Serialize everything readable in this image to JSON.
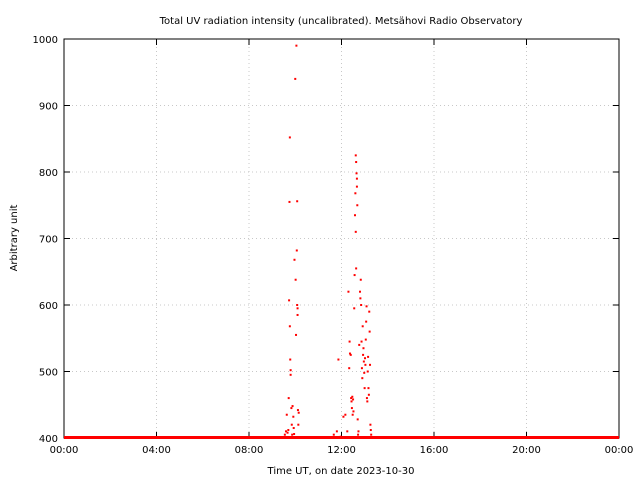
{
  "chart_data": {
    "type": "scatter",
    "title": "Total UV radiation intensity (uncalibrated). Metsähovi Radio Observatory",
    "xlabel": "Time UT, on date 2023-10-30",
    "ylabel": "Arbitrary unit",
    "xlim": [
      "00:00",
      "24:00"
    ],
    "ylim": [
      400,
      1000
    ],
    "x_ticks": [
      "00:00",
      "04:00",
      "08:00",
      "12:00",
      "16:00",
      "20:00",
      "00:00"
    ],
    "y_ticks": [
      "400",
      "500",
      "600",
      "700",
      "800",
      "900",
      "1000"
    ],
    "grid": true,
    "marker_color": "#ff0000",
    "series": [
      {
        "baseline": {
          "value": 400,
          "x_start": "00:00",
          "x_end": "24:00"
        },
        "points": [
          {
            "x": "09:33",
            "y": 405
          },
          {
            "x": "09:36",
            "y": 410
          },
          {
            "x": "09:38",
            "y": 435
          },
          {
            "x": "09:40",
            "y": 408
          },
          {
            "x": "09:42",
            "y": 412
          },
          {
            "x": "09:43",
            "y": 460
          },
          {
            "x": "09:44",
            "y": 607
          },
          {
            "x": "09:45",
            "y": 755
          },
          {
            "x": "09:46",
            "y": 852
          },
          {
            "x": "09:46",
            "y": 568
          },
          {
            "x": "09:47",
            "y": 518
          },
          {
            "x": "09:48",
            "y": 502
          },
          {
            "x": "09:48",
            "y": 495
          },
          {
            "x": "09:50",
            "y": 445
          },
          {
            "x": "09:51",
            "y": 420
          },
          {
            "x": "09:52",
            "y": 405
          },
          {
            "x": "09:53",
            "y": 448
          },
          {
            "x": "09:55",
            "y": 432
          },
          {
            "x": "09:56",
            "y": 415
          },
          {
            "x": "09:57",
            "y": 406
          },
          {
            "x": "09:58",
            "y": 668
          },
          {
            "x": "10:00",
            "y": 940
          },
          {
            "x": "10:01",
            "y": 638
          },
          {
            "x": "10:02",
            "y": 555
          },
          {
            "x": "10:03",
            "y": 990
          },
          {
            "x": "10:04",
            "y": 682
          },
          {
            "x": "10:05",
            "y": 756
          },
          {
            "x": "10:05",
            "y": 600
          },
          {
            "x": "10:06",
            "y": 585
          },
          {
            "x": "10:06",
            "y": 595
          },
          {
            "x": "10:07",
            "y": 442
          },
          {
            "x": "10:08",
            "y": 420
          },
          {
            "x": "10:09",
            "y": 438
          },
          {
            "x": "11:40",
            "y": 405
          },
          {
            "x": "11:48",
            "y": 410
          },
          {
            "x": "11:52",
            "y": 518
          },
          {
            "x": "11:58",
            "y": 402
          },
          {
            "x": "12:05",
            "y": 432
          },
          {
            "x": "12:10",
            "y": 435
          },
          {
            "x": "12:15",
            "y": 410
          },
          {
            "x": "12:18",
            "y": 620
          },
          {
            "x": "12:20",
            "y": 505
          },
          {
            "x": "12:21",
            "y": 545
          },
          {
            "x": "12:22",
            "y": 527
          },
          {
            "x": "12:24",
            "y": 525
          },
          {
            "x": "12:25",
            "y": 460
          },
          {
            "x": "12:26",
            "y": 455
          },
          {
            "x": "12:27",
            "y": 445
          },
          {
            "x": "12:28",
            "y": 462
          },
          {
            "x": "12:29",
            "y": 435
          },
          {
            "x": "12:30",
            "y": 458
          },
          {
            "x": "12:31",
            "y": 440
          },
          {
            "x": "12:33",
            "y": 595
          },
          {
            "x": "12:34",
            "y": 645
          },
          {
            "x": "12:35",
            "y": 735
          },
          {
            "x": "12:36",
            "y": 768
          },
          {
            "x": "12:37",
            "y": 825
          },
          {
            "x": "12:37",
            "y": 710
          },
          {
            "x": "12:38",
            "y": 815
          },
          {
            "x": "12:38",
            "y": 655
          },
          {
            "x": "12:39",
            "y": 798
          },
          {
            "x": "12:40",
            "y": 790
          },
          {
            "x": "12:40",
            "y": 778
          },
          {
            "x": "12:41",
            "y": 750
          },
          {
            "x": "12:42",
            "y": 428
          },
          {
            "x": "12:43",
            "y": 405
          },
          {
            "x": "12:44",
            "y": 410
          },
          {
            "x": "12:46",
            "y": 540
          },
          {
            "x": "12:48",
            "y": 620
          },
          {
            "x": "12:49",
            "y": 610
          },
          {
            "x": "12:50",
            "y": 638
          },
          {
            "x": "12:51",
            "y": 600
          },
          {
            "x": "12:52",
            "y": 545
          },
          {
            "x": "12:53",
            "y": 505
          },
          {
            "x": "12:54",
            "y": 490
          },
          {
            "x": "12:55",
            "y": 568
          },
          {
            "x": "12:56",
            "y": 525
          },
          {
            "x": "12:57",
            "y": 535
          },
          {
            "x": "12:58",
            "y": 515
          },
          {
            "x": "12:59",
            "y": 498
          },
          {
            "x": "13:00",
            "y": 475
          },
          {
            "x": "13:01",
            "y": 520
          },
          {
            "x": "13:02",
            "y": 510
          },
          {
            "x": "13:03",
            "y": 548
          },
          {
            "x": "13:04",
            "y": 575
          },
          {
            "x": "13:05",
            "y": 598
          },
          {
            "x": "13:06",
            "y": 460
          },
          {
            "x": "13:07",
            "y": 455
          },
          {
            "x": "13:08",
            "y": 500
          },
          {
            "x": "13:09",
            "y": 522
          },
          {
            "x": "13:10",
            "y": 475
          },
          {
            "x": "13:11",
            "y": 465
          },
          {
            "x": "13:12",
            "y": 590
          },
          {
            "x": "13:13",
            "y": 560
          },
          {
            "x": "13:14",
            "y": 510
          },
          {
            "x": "13:15",
            "y": 420
          },
          {
            "x": "13:16",
            "y": 412
          },
          {
            "x": "13:17",
            "y": 405
          }
        ]
      }
    ]
  }
}
